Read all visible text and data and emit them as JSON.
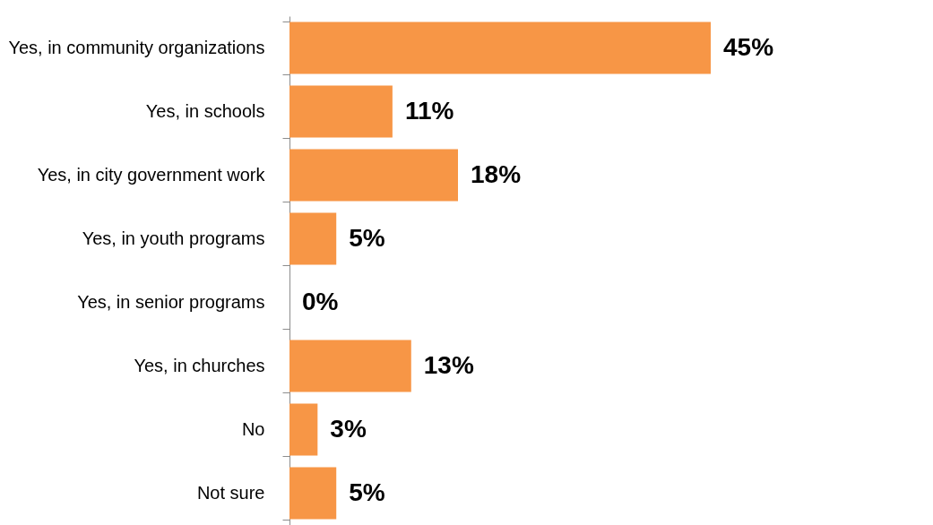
{
  "chart_data": {
    "type": "bar",
    "orientation": "horizontal",
    "categories": [
      "Yes, in community organizations",
      "Yes, in schools",
      "Yes, in city government work",
      "Yes, in youth programs",
      "Yes, in senior programs",
      "Yes, in churches",
      "No",
      "Not sure"
    ],
    "values": [
      45,
      11,
      18,
      5,
      0,
      13,
      3,
      5
    ],
    "value_labels": [
      "45%",
      "11%",
      "18%",
      "5%",
      "0%",
      "13%",
      "3%",
      "5%"
    ],
    "color": "#f79646",
    "grid": false,
    "tick_labels": "y"
  }
}
